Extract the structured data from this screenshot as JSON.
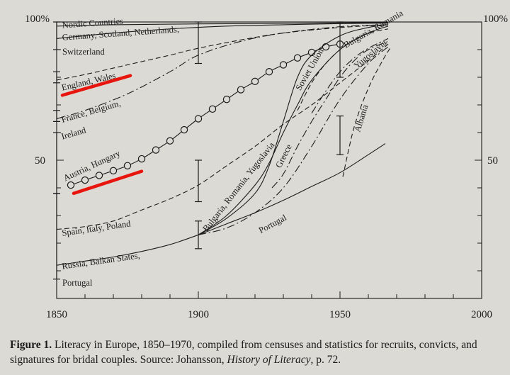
{
  "chart_data": {
    "type": "line",
    "x_range": [
      1850,
      2000
    ],
    "y_range": [
      0,
      100
    ],
    "x_ticks": [
      1850,
      1900,
      1950,
      2000
    ],
    "y_tick_labels": {
      "left_top": "100%",
      "left_mid": "50",
      "right_top": "100%",
      "right_mid": "50"
    },
    "grid": false,
    "series": [
      {
        "name": "Nordic Countries",
        "style": "solid",
        "x": [
          1850,
          1870,
          1900,
          1930,
          1950,
          1967
        ],
        "y": [
          98.5,
          99,
          99.3,
          99.5,
          99.7,
          99.8
        ]
      },
      {
        "name": "Germany, Scotland, Netherlands, Switzerland",
        "style": "solid",
        "x": [
          1850,
          1870,
          1890,
          1910,
          1930,
          1950,
          1967
        ],
        "y": [
          94,
          96,
          97.5,
          98.5,
          99,
          99.4,
          99.6
        ]
      },
      {
        "name": "England, Wales",
        "style": "dashed",
        "x": [
          1850,
          1860,
          1875,
          1890,
          1900,
          1915,
          1930,
          1950,
          1967
        ],
        "y": [
          79,
          81,
          84.5,
          88,
          90.5,
          93.5,
          96,
          98,
          99
        ]
      },
      {
        "name": "France, Belgium, Ireland",
        "style": "dash-dot",
        "x": [
          1850,
          1860,
          1875,
          1890,
          1900,
          1915,
          1930,
          1950,
          1967
        ],
        "y": [
          65,
          68,
          74,
          82,
          88,
          93,
          96,
          98.3,
          99
        ]
      },
      {
        "name": "Austria, Hungary",
        "style": "circles",
        "x": [
          1855,
          1860,
          1865,
          1870,
          1875,
          1880,
          1885,
          1890,
          1895,
          1900,
          1905,
          1910,
          1915,
          1920,
          1925,
          1930,
          1935,
          1940,
          1945,
          1950
        ],
        "y": [
          41,
          42.8,
          44.5,
          46.2,
          48,
          50.5,
          53.7,
          57,
          61,
          65,
          68.5,
          72,
          75.5,
          78.5,
          82,
          84.5,
          87,
          89,
          91,
          92
        ]
      },
      {
        "name": "Spain, Italy, Poland",
        "style": "dashed",
        "x": [
          1850,
          1860,
          1870,
          1880,
          1890,
          1900,
          1910,
          1920,
          1930,
          1940,
          1950,
          1960,
          1967
        ],
        "y": [
          25,
          26,
          28,
          32,
          36,
          41,
          48,
          55,
          63,
          70,
          78,
          86,
          92
        ]
      },
      {
        "name": "Russia, Balkan States, Portugal",
        "style": "solid",
        "x": [
          1850,
          1860,
          1870,
          1880,
          1890,
          1900,
          1910,
          1920,
          1930,
          1940,
          1950,
          1960,
          1966
        ],
        "y": [
          12,
          13.5,
          15,
          17,
          19.5,
          23,
          27,
          31,
          35.5,
          40.5,
          45.5,
          52,
          56
        ]
      },
      {
        "name": "Bulgaria, Romania, Yugoslavia",
        "style": "solid",
        "x": [
          1900,
          1910,
          1920,
          1925,
          1930,
          1935,
          1940,
          1950,
          1960,
          1967
        ],
        "y": [
          23,
          30,
          41,
          49,
          60,
          70,
          79,
          90,
          96,
          98.5
        ]
      },
      {
        "name": "Soviet Union",
        "style": "solid",
        "x": [
          1900,
          1910,
          1920,
          1925,
          1930,
          1935,
          1940,
          1950,
          1960,
          1967
        ],
        "y": [
          23,
          29,
          38,
          48,
          64,
          80,
          88,
          95,
          98,
          99
        ]
      },
      {
        "name": "Portugal",
        "style": "dash-dot",
        "x": [
          1900,
          1910,
          1920,
          1930,
          1940,
          1950,
          1960,
          1967
        ],
        "y": [
          23,
          25.5,
          31,
          40,
          55,
          72,
          85,
          91
        ]
      },
      {
        "name": "Greece",
        "style": "dash-dot",
        "x": [
          1926,
          1930,
          1935,
          1940,
          1945,
          1950,
          1955,
          1960,
          1967
        ],
        "y": [
          40,
          45,
          55,
          64,
          72,
          80,
          86,
          90,
          93
        ]
      },
      {
        "name": "Bulgaria, Romania (upper)",
        "style": "dashed",
        "x": [
          1935,
          1940,
          1945,
          1950,
          1955,
          1960,
          1967
        ],
        "y": [
          68,
          78,
          85,
          90,
          93.5,
          96,
          97.5
        ]
      },
      {
        "name": "Yugoslavia",
        "style": "dash-dot",
        "x": [
          1940,
          1945,
          1950,
          1955,
          1960,
          1967
        ],
        "y": [
          67,
          75,
          82,
          87,
          90.5,
          94
        ]
      },
      {
        "name": "Albania",
        "style": "dashed",
        "x": [
          1951,
          1955,
          1960,
          1965,
          1968
        ],
        "y": [
          44,
          62,
          76,
          86,
          91
        ]
      }
    ],
    "error_bars": [
      {
        "x": 1850,
        "y_low": 90,
        "y_high": 100
      },
      {
        "x": 1850,
        "y_low": 78,
        "y_high": 82
      },
      {
        "x": 1850,
        "y_low": 64,
        "y_high": 68
      },
      {
        "x": 1850,
        "y_low": 38,
        "y_high": 60
      },
      {
        "x": 1850,
        "y_low": 7,
        "y_high": 38
      },
      {
        "x": 1900,
        "y_low": 85,
        "y_high": 100
      },
      {
        "x": 1900,
        "y_low": 35,
        "y_high": 50
      },
      {
        "x": 1900,
        "y_low": 18,
        "y_high": 28
      },
      {
        "x": 1950,
        "y_low": 80,
        "y_high": 100
      },
      {
        "x": 1950,
        "y_low": 52,
        "y_high": 66
      }
    ],
    "series_labels": [
      {
        "text": "Nordic Countries",
        "x": 1852,
        "y": 97.8,
        "rotate": -4
      },
      {
        "text": "Germany, Scotland, Netherlands,",
        "x": 1852,
        "y": 93.4,
        "rotate": -4
      },
      {
        "text": "Switzerland",
        "x": 1852,
        "y": 88.2,
        "rotate": 0
      },
      {
        "text": "England, Wales",
        "x": 1852,
        "y": 75.2,
        "rotate": -13
      },
      {
        "text": "France, Belgium,",
        "x": 1852,
        "y": 63.6,
        "rotate": -16
      },
      {
        "text": "Ireland",
        "x": 1852,
        "y": 57.5,
        "rotate": -16
      },
      {
        "text": "Austria, Hungary",
        "x": 1853,
        "y": 42.4,
        "rotate": -25
      },
      {
        "text": "Spain, Italy, Poland",
        "x": 1852,
        "y": 22.6,
        "rotate": -8
      },
      {
        "text": "Russia, Balkan States,",
        "x": 1852,
        "y": 10.6,
        "rotate": -8
      },
      {
        "text": "Portugal",
        "x": 1852,
        "y": 4.6,
        "rotate": 0
      },
      {
        "text": "Bulgaria, Romania, Yugoslavia",
        "x": 1903,
        "y": 24,
        "rotate": -52
      },
      {
        "text": "Portugal",
        "x": 1922,
        "y": 23.5,
        "rotate": -28
      },
      {
        "text": "Soviet Union",
        "x": 1936,
        "y": 75,
        "rotate": -60
      },
      {
        "text": "Greece",
        "x": 1929,
        "y": 47,
        "rotate": -63
      },
      {
        "text": "Bulgaria, Romania",
        "x": 1952,
        "y": 90.5,
        "rotate": -30
      },
      {
        "text": "Yugoslavia",
        "x": 1956,
        "y": 83,
        "rotate": -40
      },
      {
        "text": "Albania",
        "x": 1957,
        "y": 60,
        "rotate": -73
      }
    ],
    "annotations": [
      {
        "type": "red-underline",
        "color": "#e8150e",
        "from": [
          1852,
          73.5
        ],
        "to": [
          1876,
          80.6
        ]
      },
      {
        "type": "red-underline",
        "color": "#e8150e",
        "from": [
          1856,
          38
        ],
        "to": [
          1880,
          46
        ]
      }
    ]
  },
  "caption": {
    "label": "Figure 1.",
    "text_1": " Literacy in Europe, 1850–1970, compiled from censuses and statistics for recruits, convicts, and signatures for bridal couples. Source: Johansson, ",
    "source_title": "History of Literacy",
    "text_2": ", p. 72."
  }
}
